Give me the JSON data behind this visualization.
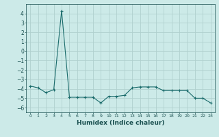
{
  "x": [
    0,
    1,
    2,
    3,
    4,
    5,
    6,
    7,
    8,
    9,
    10,
    11,
    12,
    13,
    14,
    15,
    16,
    17,
    18,
    19,
    20,
    21,
    22,
    23
  ],
  "y": [
    -3.7,
    -3.9,
    -4.4,
    -4.1,
    4.3,
    -4.9,
    -4.9,
    -4.9,
    -4.9,
    -5.5,
    -4.8,
    -4.8,
    -4.7,
    -3.9,
    -3.8,
    -3.8,
    -3.8,
    -4.2,
    -4.2,
    -4.2,
    -4.2,
    -5.0,
    -5.0,
    -5.5
  ],
  "xlabel": "Humidex (Indice chaleur)",
  "ylim": [
    -6.5,
    5.0
  ],
  "xlim": [
    -0.5,
    23.5
  ],
  "yticks": [
    -6,
    -5,
    -4,
    -3,
    -2,
    -1,
    0,
    1,
    2,
    3,
    4
  ],
  "xtick_labels": [
    "0",
    "1",
    "2",
    "3",
    "4",
    "5",
    "6",
    "7",
    "8",
    "9",
    "10",
    "11",
    "12",
    "13",
    "14",
    "15",
    "16",
    "17",
    "18",
    "19",
    "20",
    "21",
    "22",
    "23"
  ],
  "line_color": "#1a6b6b",
  "marker": "+",
  "bg_color": "#cceae8",
  "grid_color": "#b0d0ce",
  "font_color": "#1a5050"
}
